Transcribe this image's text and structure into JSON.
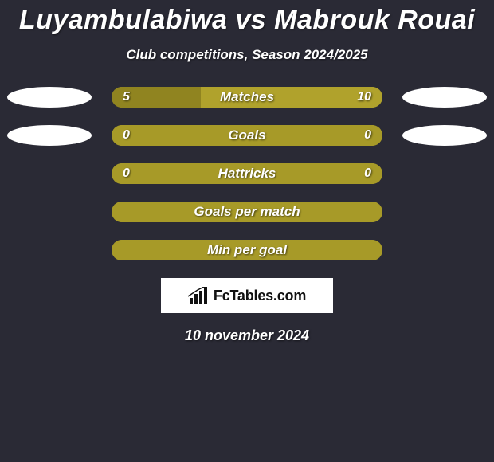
{
  "title": "Luyambulabiwa vs Mabrouk Rouai",
  "subtitle": "Club competitions, Season 2024/2025",
  "date": "10 november 2024",
  "colors": {
    "background": "#2a2a35",
    "bar_left": "#a79a28",
    "bar_right": "#b0a22c",
    "bar_empty": "#a79a28",
    "oval_left": "#ffffff",
    "oval_right": "#ffffff",
    "text": "#ffffff"
  },
  "attribution": {
    "label": "FcTables.com",
    "icon_name": "bar-chart-icon"
  },
  "rows": [
    {
      "label": "Matches",
      "left_value": "5",
      "right_value": "10",
      "left_pct": 33,
      "right_pct": 67,
      "show_ovals": true,
      "oval_left_color": "#ffffff",
      "oval_right_color": "#ffffff",
      "left_fill": "#908420",
      "right_fill": "#b0a22c"
    },
    {
      "label": "Goals",
      "left_value": "0",
      "right_value": "0",
      "left_pct": 50,
      "right_pct": 50,
      "show_ovals": true,
      "oval_left_color": "#ffffff",
      "oval_right_color": "#ffffff",
      "left_fill": "#a79a28",
      "right_fill": "#a79a28"
    },
    {
      "label": "Hattricks",
      "left_value": "0",
      "right_value": "0",
      "left_pct": 50,
      "right_pct": 50,
      "show_ovals": false,
      "left_fill": "#a79a28",
      "right_fill": "#a79a28"
    },
    {
      "label": "Goals per match",
      "left_value": "",
      "right_value": "",
      "left_pct": 50,
      "right_pct": 50,
      "show_ovals": false,
      "left_fill": "#a79a28",
      "right_fill": "#a79a28"
    },
    {
      "label": "Min per goal",
      "left_value": "",
      "right_value": "",
      "left_pct": 50,
      "right_pct": 50,
      "show_ovals": false,
      "left_fill": "#a79a28",
      "right_fill": "#a79a28"
    }
  ]
}
